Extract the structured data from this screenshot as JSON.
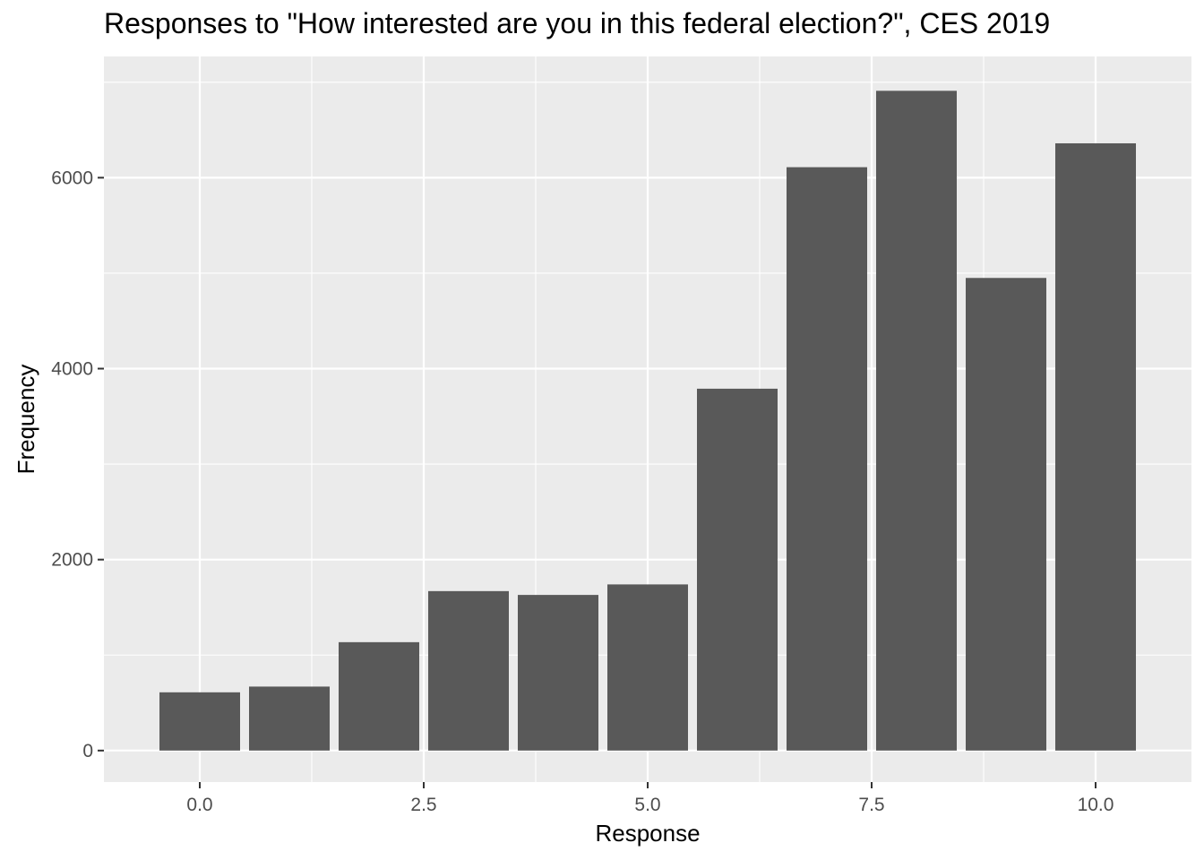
{
  "chart_data": {
    "type": "bar",
    "title": "Responses to \"How interested are you in this federal election?\", CES 2019",
    "xlabel": "Response",
    "ylabel": "Frequency",
    "x": [
      0,
      1,
      2,
      3,
      4,
      5,
      6,
      7,
      8,
      9,
      10
    ],
    "values": [
      610,
      670,
      1135,
      1670,
      1630,
      1740,
      3790,
      6110,
      6910,
      4950,
      6360
    ],
    "xlim": [
      -0.5,
      10.5
    ],
    "ylim": [
      0,
      7000
    ],
    "xticks": [
      0,
      2.5,
      5,
      7.5,
      10
    ],
    "xtick_labels": [
      "0.0",
      "2.5",
      "5.0",
      "7.5",
      "10.0"
    ],
    "yticks": [
      0,
      2000,
      4000,
      6000
    ],
    "ytick_labels": [
      "0",
      "2000",
      "4000",
      "6000"
    ],
    "grid": true,
    "colors": {
      "bar": "#595959",
      "panel": "#ebebeb",
      "grid": "#ffffff"
    }
  }
}
